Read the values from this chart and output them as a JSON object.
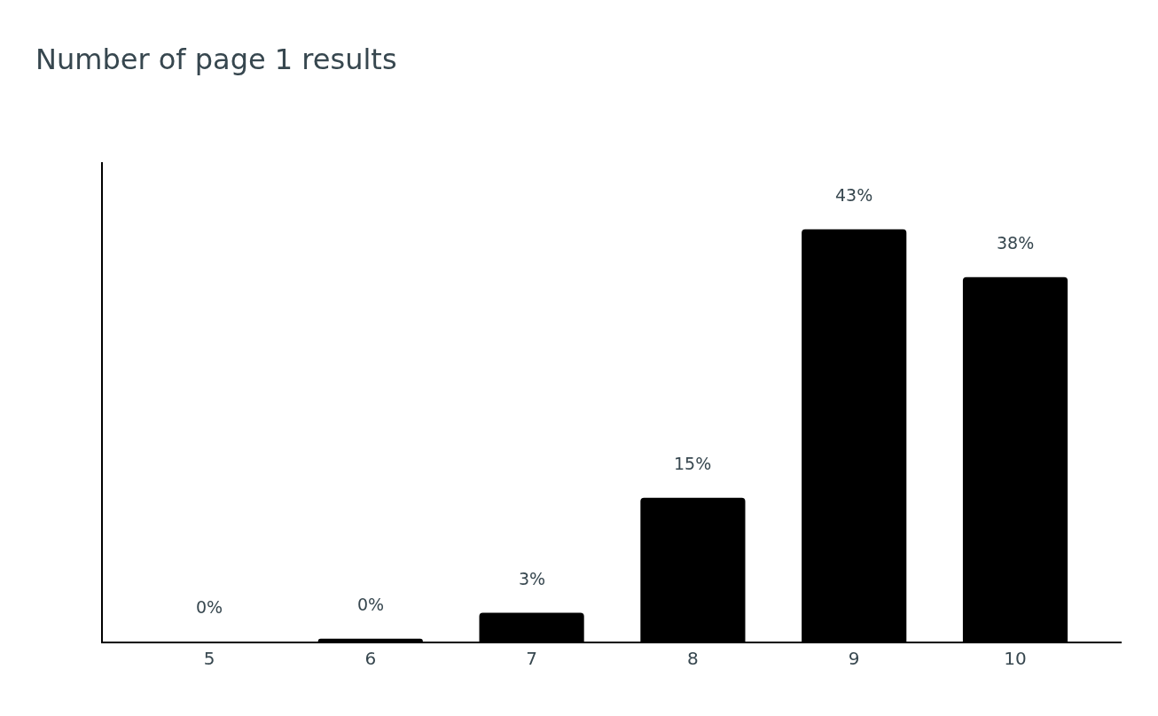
{
  "chart_data": {
    "type": "bar",
    "title": "Number of page 1 results",
    "categories": [
      "5",
      "6",
      "7",
      "8",
      "9",
      "10"
    ],
    "values": [
      0,
      0.3,
      3,
      15,
      43,
      38
    ],
    "value_labels": [
      "0%",
      "0%",
      "3%",
      "15%",
      "43%",
      "38%"
    ],
    "color": "#000000",
    "ylim": [
      0,
      50
    ],
    "tick_labels": "x"
  }
}
